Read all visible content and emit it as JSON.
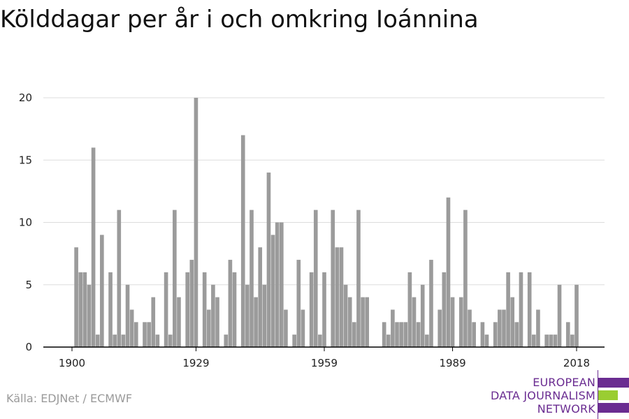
{
  "title": "Kölddagar per år i och omkring Ioánnina",
  "source": "Källa: EDJNet / ECMWF",
  "logo": {
    "lines": [
      "EUROPEAN",
      "DATA JOURNALISM",
      "NETWORK"
    ]
  },
  "colors": {
    "bar": "#9b9b9b",
    "grid": "#dddddd",
    "axis": "#000000",
    "logo_purple": "#6a2c91",
    "logo_green": "#9acd32"
  },
  "chart_data": {
    "type": "bar",
    "title": "",
    "xlabel": "",
    "ylabel": "",
    "xlim": [
      1900,
      2018
    ],
    "ylim": [
      0,
      20
    ],
    "x_ticks": [
      1900,
      1929,
      1959,
      1989,
      2018
    ],
    "y_ticks": [
      0,
      5,
      10,
      15,
      20
    ],
    "grid": "horizontal",
    "years": [
      1900,
      1901,
      1902,
      1903,
      1904,
      1905,
      1906,
      1907,
      1908,
      1909,
      1910,
      1911,
      1912,
      1913,
      1914,
      1915,
      1916,
      1917,
      1918,
      1919,
      1920,
      1921,
      1922,
      1923,
      1924,
      1925,
      1926,
      1927,
      1928,
      1929,
      1930,
      1931,
      1932,
      1933,
      1934,
      1935,
      1936,
      1937,
      1938,
      1939,
      1940,
      1941,
      1942,
      1943,
      1944,
      1945,
      1946,
      1947,
      1948,
      1949,
      1950,
      1951,
      1952,
      1953,
      1954,
      1955,
      1956,
      1957,
      1958,
      1959,
      1960,
      1961,
      1962,
      1963,
      1964,
      1965,
      1966,
      1967,
      1968,
      1969,
      1970,
      1971,
      1972,
      1973,
      1974,
      1975,
      1976,
      1977,
      1978,
      1979,
      1980,
      1981,
      1982,
      1983,
      1984,
      1985,
      1986,
      1987,
      1988,
      1989,
      1990,
      1991,
      1992,
      1993,
      1994,
      1995,
      1996,
      1997,
      1998,
      1999,
      2000,
      2001,
      2002,
      2003,
      2004,
      2005,
      2006,
      2007,
      2008,
      2009,
      2010,
      2011,
      2012,
      2013,
      2014,
      2015,
      2016,
      2017,
      2018
    ],
    "values": [
      0,
      8,
      6,
      6,
      5,
      16,
      1,
      9,
      0,
      6,
      1,
      11,
      1,
      5,
      3,
      2,
      0,
      2,
      2,
      4,
      1,
      0,
      6,
      1,
      11,
      4,
      0,
      6,
      7,
      20,
      0,
      6,
      3,
      5,
      4,
      0,
      1,
      7,
      6,
      0,
      17,
      5,
      11,
      4,
      8,
      5,
      14,
      9,
      10,
      10,
      3,
      0,
      1,
      7,
      3,
      0,
      6,
      11,
      1,
      6,
      0,
      11,
      8,
      8,
      5,
      4,
      2,
      11,
      4,
      4,
      0,
      0,
      0,
      2,
      1,
      3,
      2,
      2,
      2,
      6,
      4,
      2,
      5,
      1,
      7,
      0,
      3,
      6,
      12,
      4,
      0,
      4,
      11,
      3,
      2,
      0,
      2,
      1,
      0,
      2,
      3,
      3,
      6,
      4,
      2,
      6,
      0,
      6,
      1,
      3,
      0,
      1,
      1,
      1,
      5,
      0,
      2,
      1,
      5
    ]
  }
}
